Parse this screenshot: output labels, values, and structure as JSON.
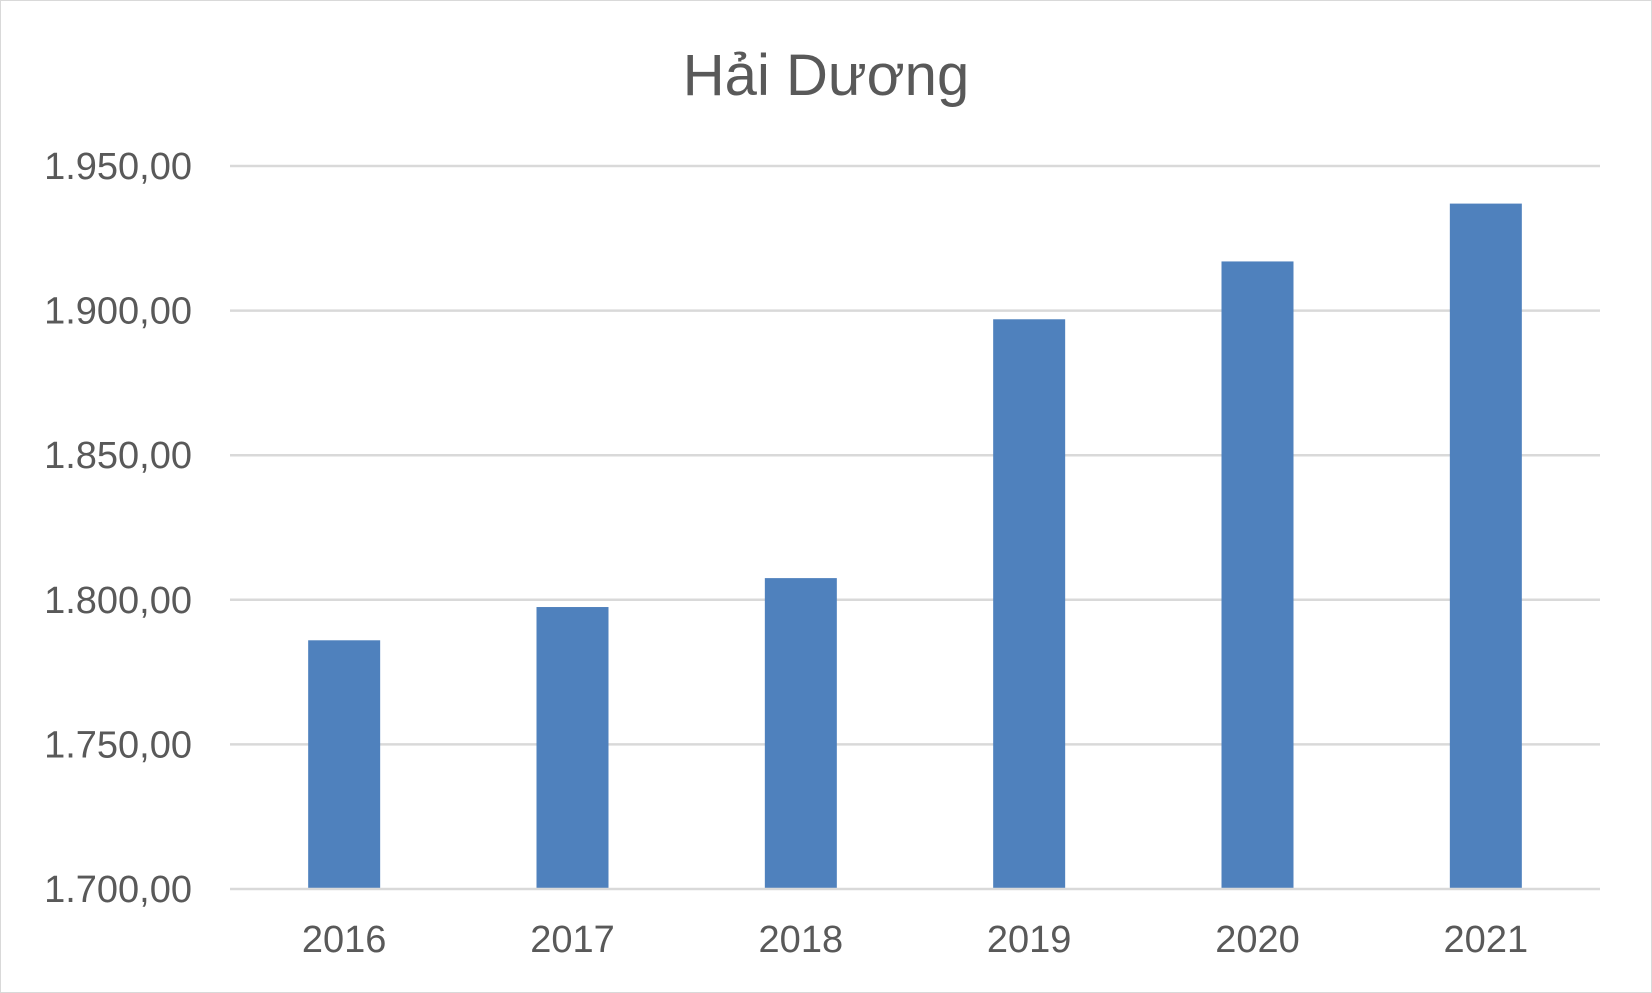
{
  "chart_data": {
    "type": "bar",
    "title": "Hải Dương",
    "xlabel": "",
    "ylabel": "",
    "categories": [
      "2016",
      "2017",
      "2018",
      "2019",
      "2020",
      "2021"
    ],
    "values": [
      1786.0,
      1797.5,
      1807.5,
      1897.0,
      1917.0,
      1937.0
    ],
    "ylim": [
      1700,
      1950
    ],
    "yticks": [
      1700,
      1750,
      1800,
      1850,
      1900,
      1950
    ],
    "ytick_labels": [
      "1.700,00",
      "1.750,00",
      "1.800,00",
      "1.850,00",
      "1.900,00",
      "1.950,00"
    ],
    "grid": true,
    "legend": "none",
    "bar_color": "#4f81bd",
    "grid_color": "#d9d9d9",
    "text_color": "#595959"
  }
}
